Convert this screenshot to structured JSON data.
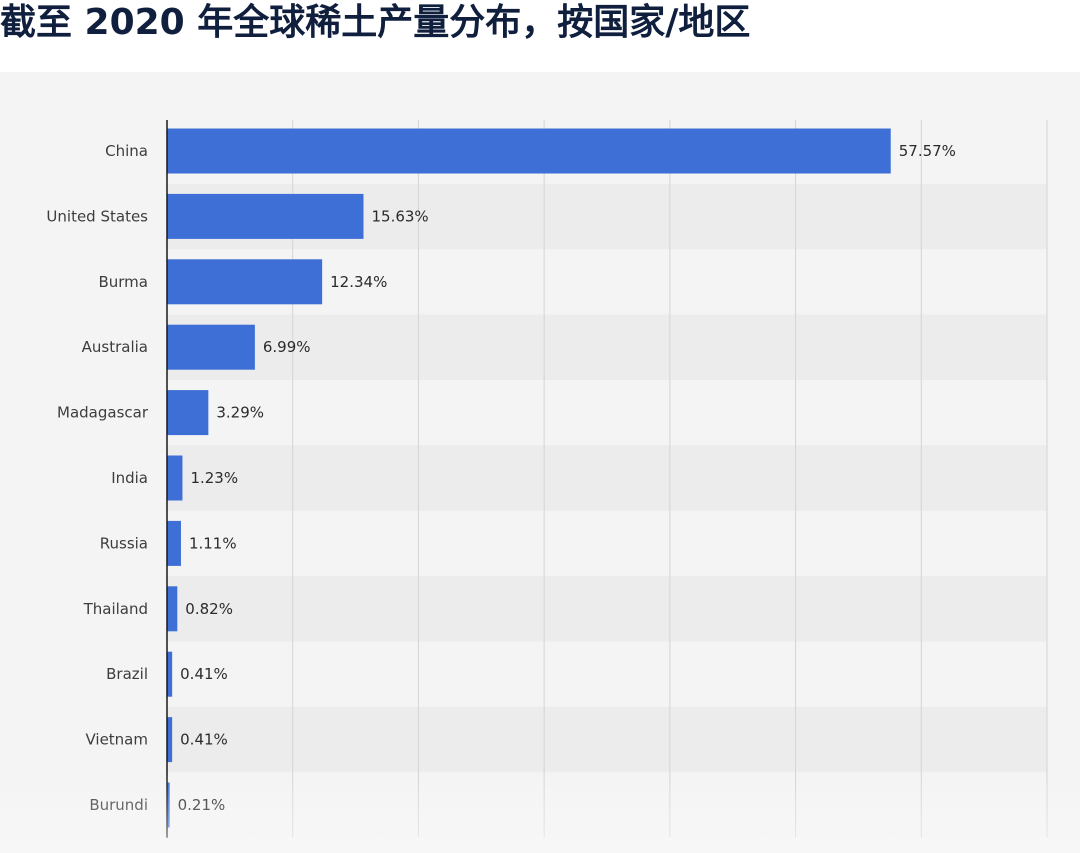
{
  "title": "截至 2020 年全球稀土产量分布，按国家/地区",
  "colors": {
    "bar": "#3d6fd6",
    "stripe": "#ececec",
    "panel": "#f4f4f4",
    "grid": "#d4d4d4",
    "axis": "#1a1a1a"
  },
  "chart_data": {
    "type": "bar",
    "orientation": "horizontal",
    "title": "截至 2020 年全球稀土产量分布，按国家/地区",
    "categories": [
      "China",
      "United States",
      "Burma",
      "Australia",
      "Madagascar",
      "India",
      "Russia",
      "Thailand",
      "Brazil",
      "Vietnam",
      "Burundi"
    ],
    "values": [
      57.57,
      15.63,
      12.34,
      6.99,
      3.29,
      1.23,
      1.11,
      0.82,
      0.41,
      0.41,
      0.21
    ],
    "value_labels": [
      "57.57%",
      "15.63%",
      "12.34%",
      "6.99%",
      "3.29%",
      "1.23%",
      "1.11%",
      "0.82%",
      "0.41%",
      "0.41%",
      "0.21%"
    ],
    "xlim": [
      0,
      70
    ],
    "grid": true,
    "xlabel": "",
    "ylabel": ""
  }
}
